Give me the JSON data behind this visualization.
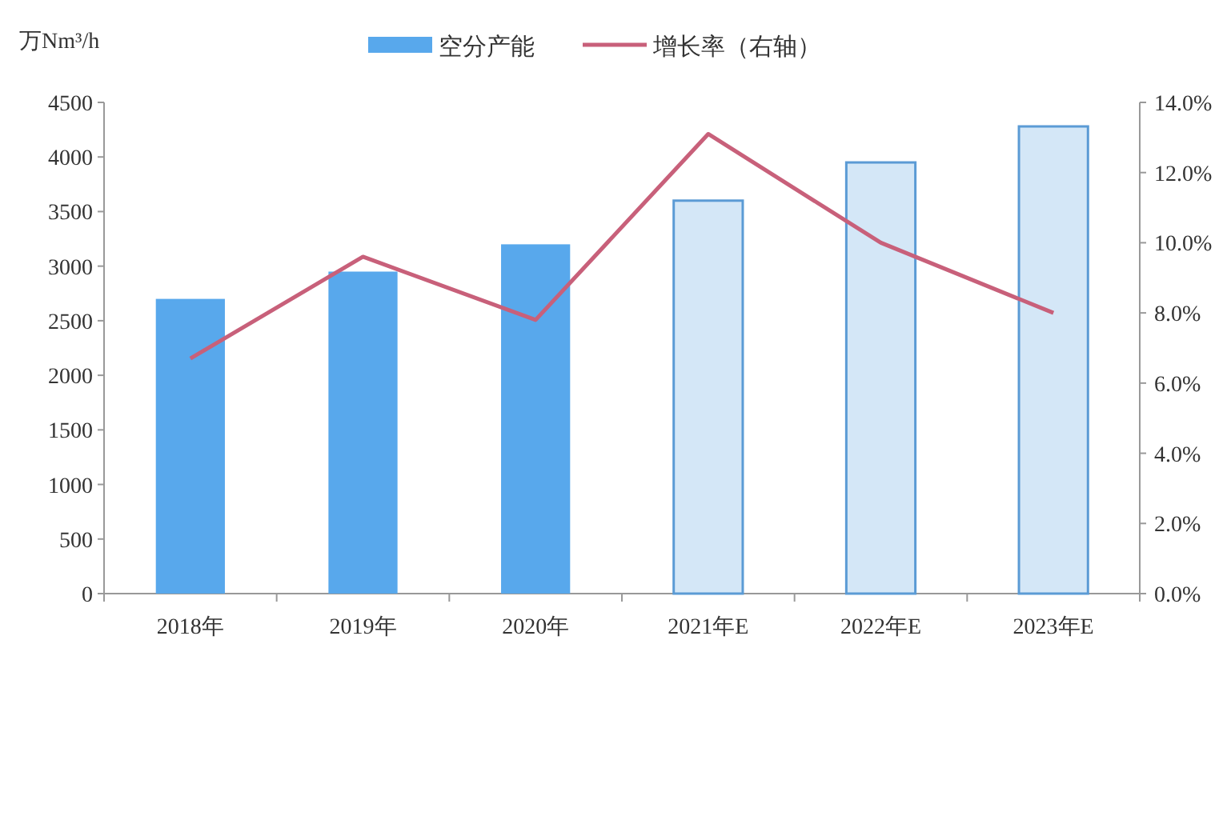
{
  "chart_data": {
    "type": "bar",
    "ylabel": "万Nm³/h",
    "categories": [
      "2018年",
      "2019年",
      "2020年",
      "2021年E",
      "2022年E",
      "2023年E"
    ],
    "series": [
      {
        "name": "空分产能",
        "colors": [
          "#58a8ec",
          "#58a8ec",
          "#58a8ec",
          "#d4e7f7",
          "#d4e7f7",
          "#d4e7f7"
        ],
        "values": [
          2700,
          2950,
          3200,
          3600,
          3950,
          4280
        ]
      },
      {
        "name": "增长率（右轴）",
        "type": "line",
        "axis": "y2",
        "color": "#c8607a",
        "values": [
          6.7,
          9.6,
          7.8,
          13.1,
          10.0,
          8.0
        ]
      }
    ],
    "ylim": [
      0,
      4500
    ],
    "yticks": [
      0,
      500,
      1000,
      1500,
      2000,
      2500,
      3000,
      3500,
      4000,
      4500
    ],
    "y2lim": [
      0,
      14
    ],
    "y2ticks": [
      {
        "value": 0,
        "label": "0.0%"
      },
      {
        "value": 2,
        "label": "2.0%"
      },
      {
        "value": 4,
        "label": "4.0%"
      },
      {
        "value": 6,
        "label": "6.0%"
      },
      {
        "value": 8,
        "label": "8.0%"
      },
      {
        "value": 10,
        "label": "10.0%"
      },
      {
        "value": 12,
        "label": "12.0%"
      },
      {
        "value": 14,
        "label": "14.0%"
      }
    ],
    "legend": "top",
    "grid": false
  }
}
